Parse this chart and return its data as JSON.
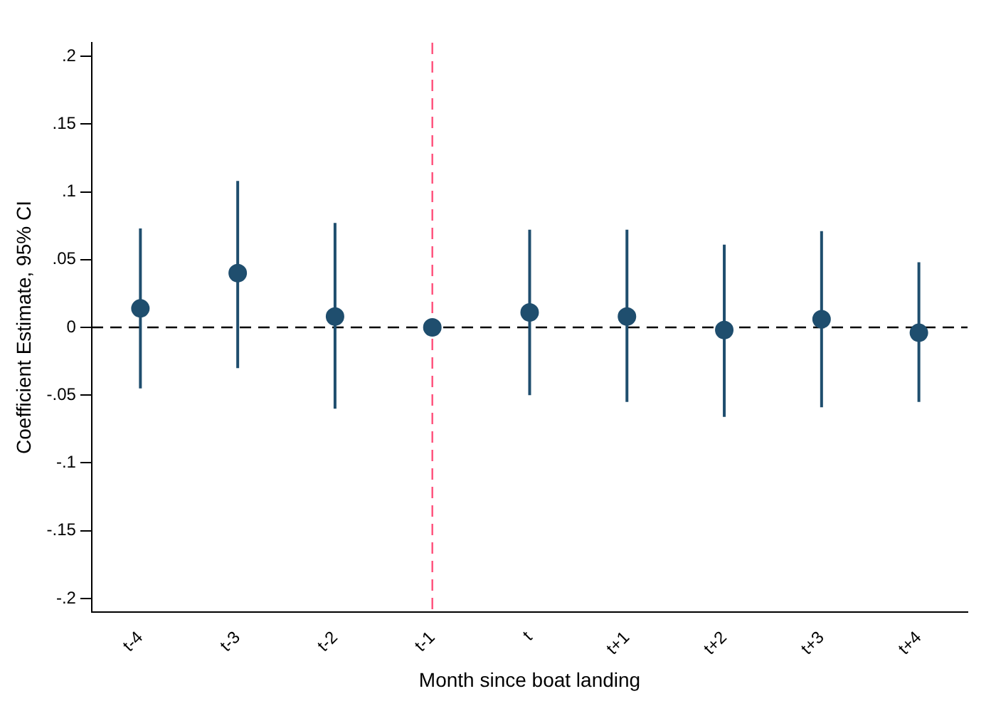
{
  "chart_data": {
    "type": "scatter",
    "xlabel": "Month since boat landing",
    "ylabel": "Coefficient Estimate, 95% CI",
    "categories": [
      "t-4",
      "t-3",
      "t-2",
      "t-1",
      "t",
      "t+1",
      "t+2",
      "t+3",
      "t+4"
    ],
    "values": [
      0.014,
      0.04,
      0.008,
      0,
      0.011,
      0.008,
      -0.002,
      0.006,
      -0.004
    ],
    "errors": [
      [
        -0.045,
        0.073
      ],
      [
        -0.03,
        0.108
      ],
      [
        -0.06,
        0.077
      ],
      null,
      [
        -0.05,
        0.072
      ],
      [
        -0.055,
        0.072
      ],
      [
        -0.066,
        0.061
      ],
      [
        -0.059,
        0.071
      ],
      [
        -0.055,
        0.048
      ]
    ],
    "color": "#1f4e6e",
    "marker": "circle",
    "ylim": [
      -0.21,
      0.21
    ],
    "yticks": [
      {
        "value": -0.2,
        "label": "-.2"
      },
      {
        "value": -0.15,
        "label": "-.15"
      },
      {
        "value": -0.1,
        "label": "-.1"
      },
      {
        "value": -0.05,
        "label": "-.05"
      },
      0,
      {
        "value": 0.05,
        "label": ".05"
      },
      {
        "value": 0.1,
        "label": ".1"
      },
      {
        "value": 0.15,
        "label": ".15"
      },
      {
        "value": 0.2,
        "label": ".2"
      }
    ],
    "ref_lines": [
      {
        "axis": "y",
        "value": 0,
        "color": "#000000",
        "line_style": "dashed"
      },
      {
        "axis": "x",
        "value": "t-1",
        "color": "#ff4f7a",
        "line_style": "dashed"
      }
    ],
    "grid": false,
    "legend": false
  }
}
